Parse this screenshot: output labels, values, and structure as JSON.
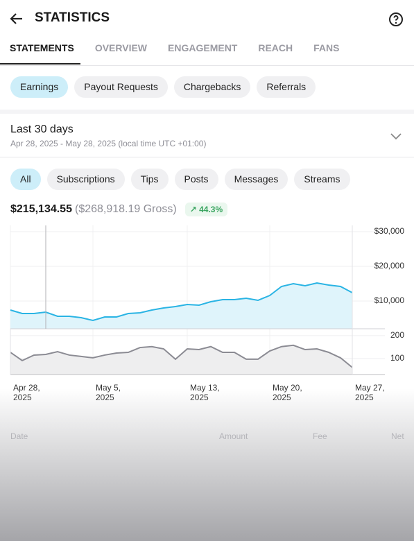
{
  "header": {
    "title": "STATISTICS"
  },
  "tabs": [
    "STATEMENTS",
    "OVERVIEW",
    "ENGAGEMENT",
    "REACH",
    "FANS"
  ],
  "chips": [
    "Earnings",
    "Payout Requests",
    "Chargebacks",
    "Referrals"
  ],
  "period": {
    "title": "Last 30 days",
    "range": "Apr 28, 2025 - May 28, 2025 (local time UTC +01:00)"
  },
  "filters": [
    "All",
    "Subscriptions",
    "Tips",
    "Posts",
    "Messages",
    "Streams"
  ],
  "summary": {
    "amount": "$215,134.55",
    "gross": "($268,918.19 Gross)",
    "change": "44.3%"
  },
  "chart_data": [
    {
      "type": "area",
      "color": "#2ab4e4",
      "values": [
        7400,
        6400,
        6400,
        6800,
        5600,
        5600,
        5200,
        4400,
        5400,
        5400,
        6400,
        6600,
        7400,
        8000,
        8400,
        9000,
        8800,
        9800,
        10400,
        10400,
        10800,
        10200,
        11600,
        14200,
        15000,
        14400,
        15200,
        14600,
        14200,
        12400
      ],
      "ylim": [
        2000,
        31800
      ],
      "yticks": [
        {
          "value": 30000,
          "label": "$30,000"
        },
        {
          "value": 20000,
          "label": "$20,000"
        },
        {
          "value": 10000,
          "label": "$10,000"
        }
      ],
      "grid": true
    },
    {
      "type": "area",
      "color": "#8b8b93",
      "categories": [
        "Apr 28, 2025",
        null,
        null,
        null,
        null,
        null,
        null,
        "May 5, 2025",
        null,
        null,
        null,
        null,
        null,
        null,
        null,
        "May 13, 2025",
        null,
        null,
        null,
        null,
        null,
        null,
        "May 20, 2025",
        null,
        null,
        null,
        null,
        null,
        null,
        "May 27, 2025"
      ],
      "values": [
        127,
        91,
        115,
        118,
        130,
        115,
        109,
        103,
        115,
        124,
        127,
        148,
        152,
        142,
        97,
        142,
        139,
        152,
        127,
        127,
        97,
        97,
        133,
        152,
        158,
        139,
        142,
        127,
        103,
        61
      ],
      "ylim": [
        30,
        230
      ],
      "yticks": [
        200,
        100
      ],
      "grid": true
    }
  ],
  "table": {
    "headers": [
      "Date",
      "Amount",
      "Fee",
      "Net"
    ]
  }
}
